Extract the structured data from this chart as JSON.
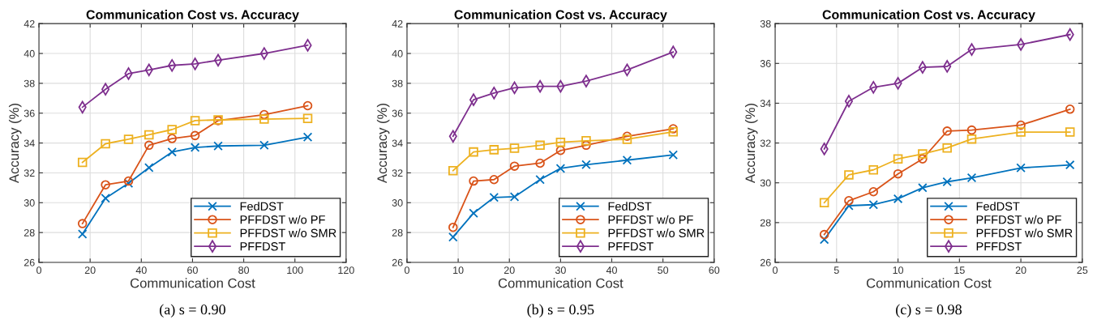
{
  "chart_data": [
    {
      "type": "line",
      "title": "Communication Cost vs. Accuracy",
      "xlabel": "Communication Cost",
      "ylabel": "Accuracy (%)",
      "annotations": [
        "(a) s = 0.90"
      ],
      "x": [
        17,
        26,
        35,
        43,
        52,
        61,
        70,
        88,
        105
      ],
      "xlim": [
        0,
        120
      ],
      "xticks": [
        0,
        20,
        40,
        60,
        80,
        100,
        120
      ],
      "ylim": [
        26,
        42
      ],
      "yticks": [
        26,
        28,
        30,
        32,
        34,
        36,
        38,
        40,
        42
      ],
      "grid": true,
      "legend": "bottom right",
      "series": [
        {
          "name": "FedDST",
          "color": "#0072bd",
          "marker": "cross",
          "values": [
            27.9,
            30.3,
            31.3,
            32.35,
            33.4,
            33.7,
            33.8,
            33.85,
            34.4
          ]
        },
        {
          "name": "PFFDST w/o PF",
          "color": "#d95319",
          "marker": "circle",
          "values": [
            28.6,
            31.2,
            31.45,
            33.85,
            34.3,
            34.5,
            35.5,
            35.9,
            36.5
          ]
        },
        {
          "name": "PFFDST w/o SMR",
          "color": "#edb120",
          "marker": "square",
          "values": [
            32.7,
            33.95,
            34.25,
            34.55,
            34.9,
            35.5,
            35.55,
            35.6,
            35.65
          ]
        },
        {
          "name": "PFFDST",
          "color": "#7e2f8e",
          "marker": "diamond",
          "values": [
            36.4,
            37.6,
            38.65,
            38.9,
            39.2,
            39.3,
            39.55,
            40.0,
            40.55
          ]
        }
      ]
    },
    {
      "type": "line",
      "title": "Communication Cost vs. Accuracy",
      "xlabel": "Communication Cost",
      "ylabel": "Accuracy (%)",
      "annotations": [
        "(b) s = 0.95"
      ],
      "x": [
        9,
        13,
        17,
        21,
        26,
        30,
        35,
        43,
        52
      ],
      "xlim": [
        0,
        60
      ],
      "xticks": [
        0,
        10,
        20,
        30,
        40,
        50,
        60
      ],
      "ylim": [
        26,
        42
      ],
      "yticks": [
        26,
        28,
        30,
        32,
        34,
        36,
        38,
        40,
        42
      ],
      "grid": true,
      "legend": "bottom right",
      "series": [
        {
          "name": "FedDST",
          "color": "#0072bd",
          "marker": "cross",
          "values": [
            27.7,
            29.3,
            30.35,
            30.4,
            31.55,
            32.3,
            32.55,
            32.85,
            33.2
          ]
        },
        {
          "name": "PFFDST w/o PF",
          "color": "#d95319",
          "marker": "circle",
          "values": [
            28.35,
            31.45,
            31.55,
            32.45,
            32.65,
            33.5,
            33.85,
            34.45,
            34.95
          ]
        },
        {
          "name": "PFFDST w/o SMR",
          "color": "#edb120",
          "marker": "square",
          "values": [
            32.15,
            33.4,
            33.55,
            33.65,
            33.85,
            34.05,
            34.15,
            34.25,
            34.75
          ]
        },
        {
          "name": "PFFDST",
          "color": "#7e2f8e",
          "marker": "diamond",
          "values": [
            34.45,
            36.9,
            37.35,
            37.7,
            37.8,
            37.8,
            38.15,
            38.9,
            40.1
          ]
        }
      ]
    },
    {
      "type": "line",
      "title": "Communication Cost vs. Accuracy",
      "xlabel": "Communication Cost",
      "ylabel": "Accuracy (%)",
      "annotations": [
        "(c) s = 0.98"
      ],
      "x": [
        4,
        6,
        8,
        10,
        12,
        14,
        16,
        20,
        24
      ],
      "xlim": [
        0,
        25
      ],
      "xticks": [
        0,
        5,
        10,
        15,
        20,
        25
      ],
      "ylim": [
        26,
        38
      ],
      "yticks": [
        26,
        28,
        30,
        32,
        34,
        36,
        38
      ],
      "grid": true,
      "legend": "bottom right",
      "series": [
        {
          "name": "FedDST",
          "color": "#0072bd",
          "marker": "cross",
          "values": [
            27.15,
            28.85,
            28.9,
            29.2,
            29.75,
            30.05,
            30.25,
            30.75,
            30.9
          ]
        },
        {
          "name": "PFFDST w/o PF",
          "color": "#d95319",
          "marker": "circle",
          "values": [
            27.4,
            29.1,
            29.55,
            30.45,
            31.2,
            32.6,
            32.65,
            32.9,
            33.7
          ]
        },
        {
          "name": "PFFDST w/o SMR",
          "color": "#edb120",
          "marker": "square",
          "values": [
            29.0,
            30.4,
            30.65,
            31.2,
            31.45,
            31.75,
            32.2,
            32.55,
            32.55
          ]
        },
        {
          "name": "PFFDST",
          "color": "#7e2f8e",
          "marker": "diamond",
          "values": [
            31.7,
            34.1,
            34.8,
            35.0,
            35.8,
            35.85,
            36.7,
            36.95,
            37.45
          ]
        }
      ]
    }
  ]
}
